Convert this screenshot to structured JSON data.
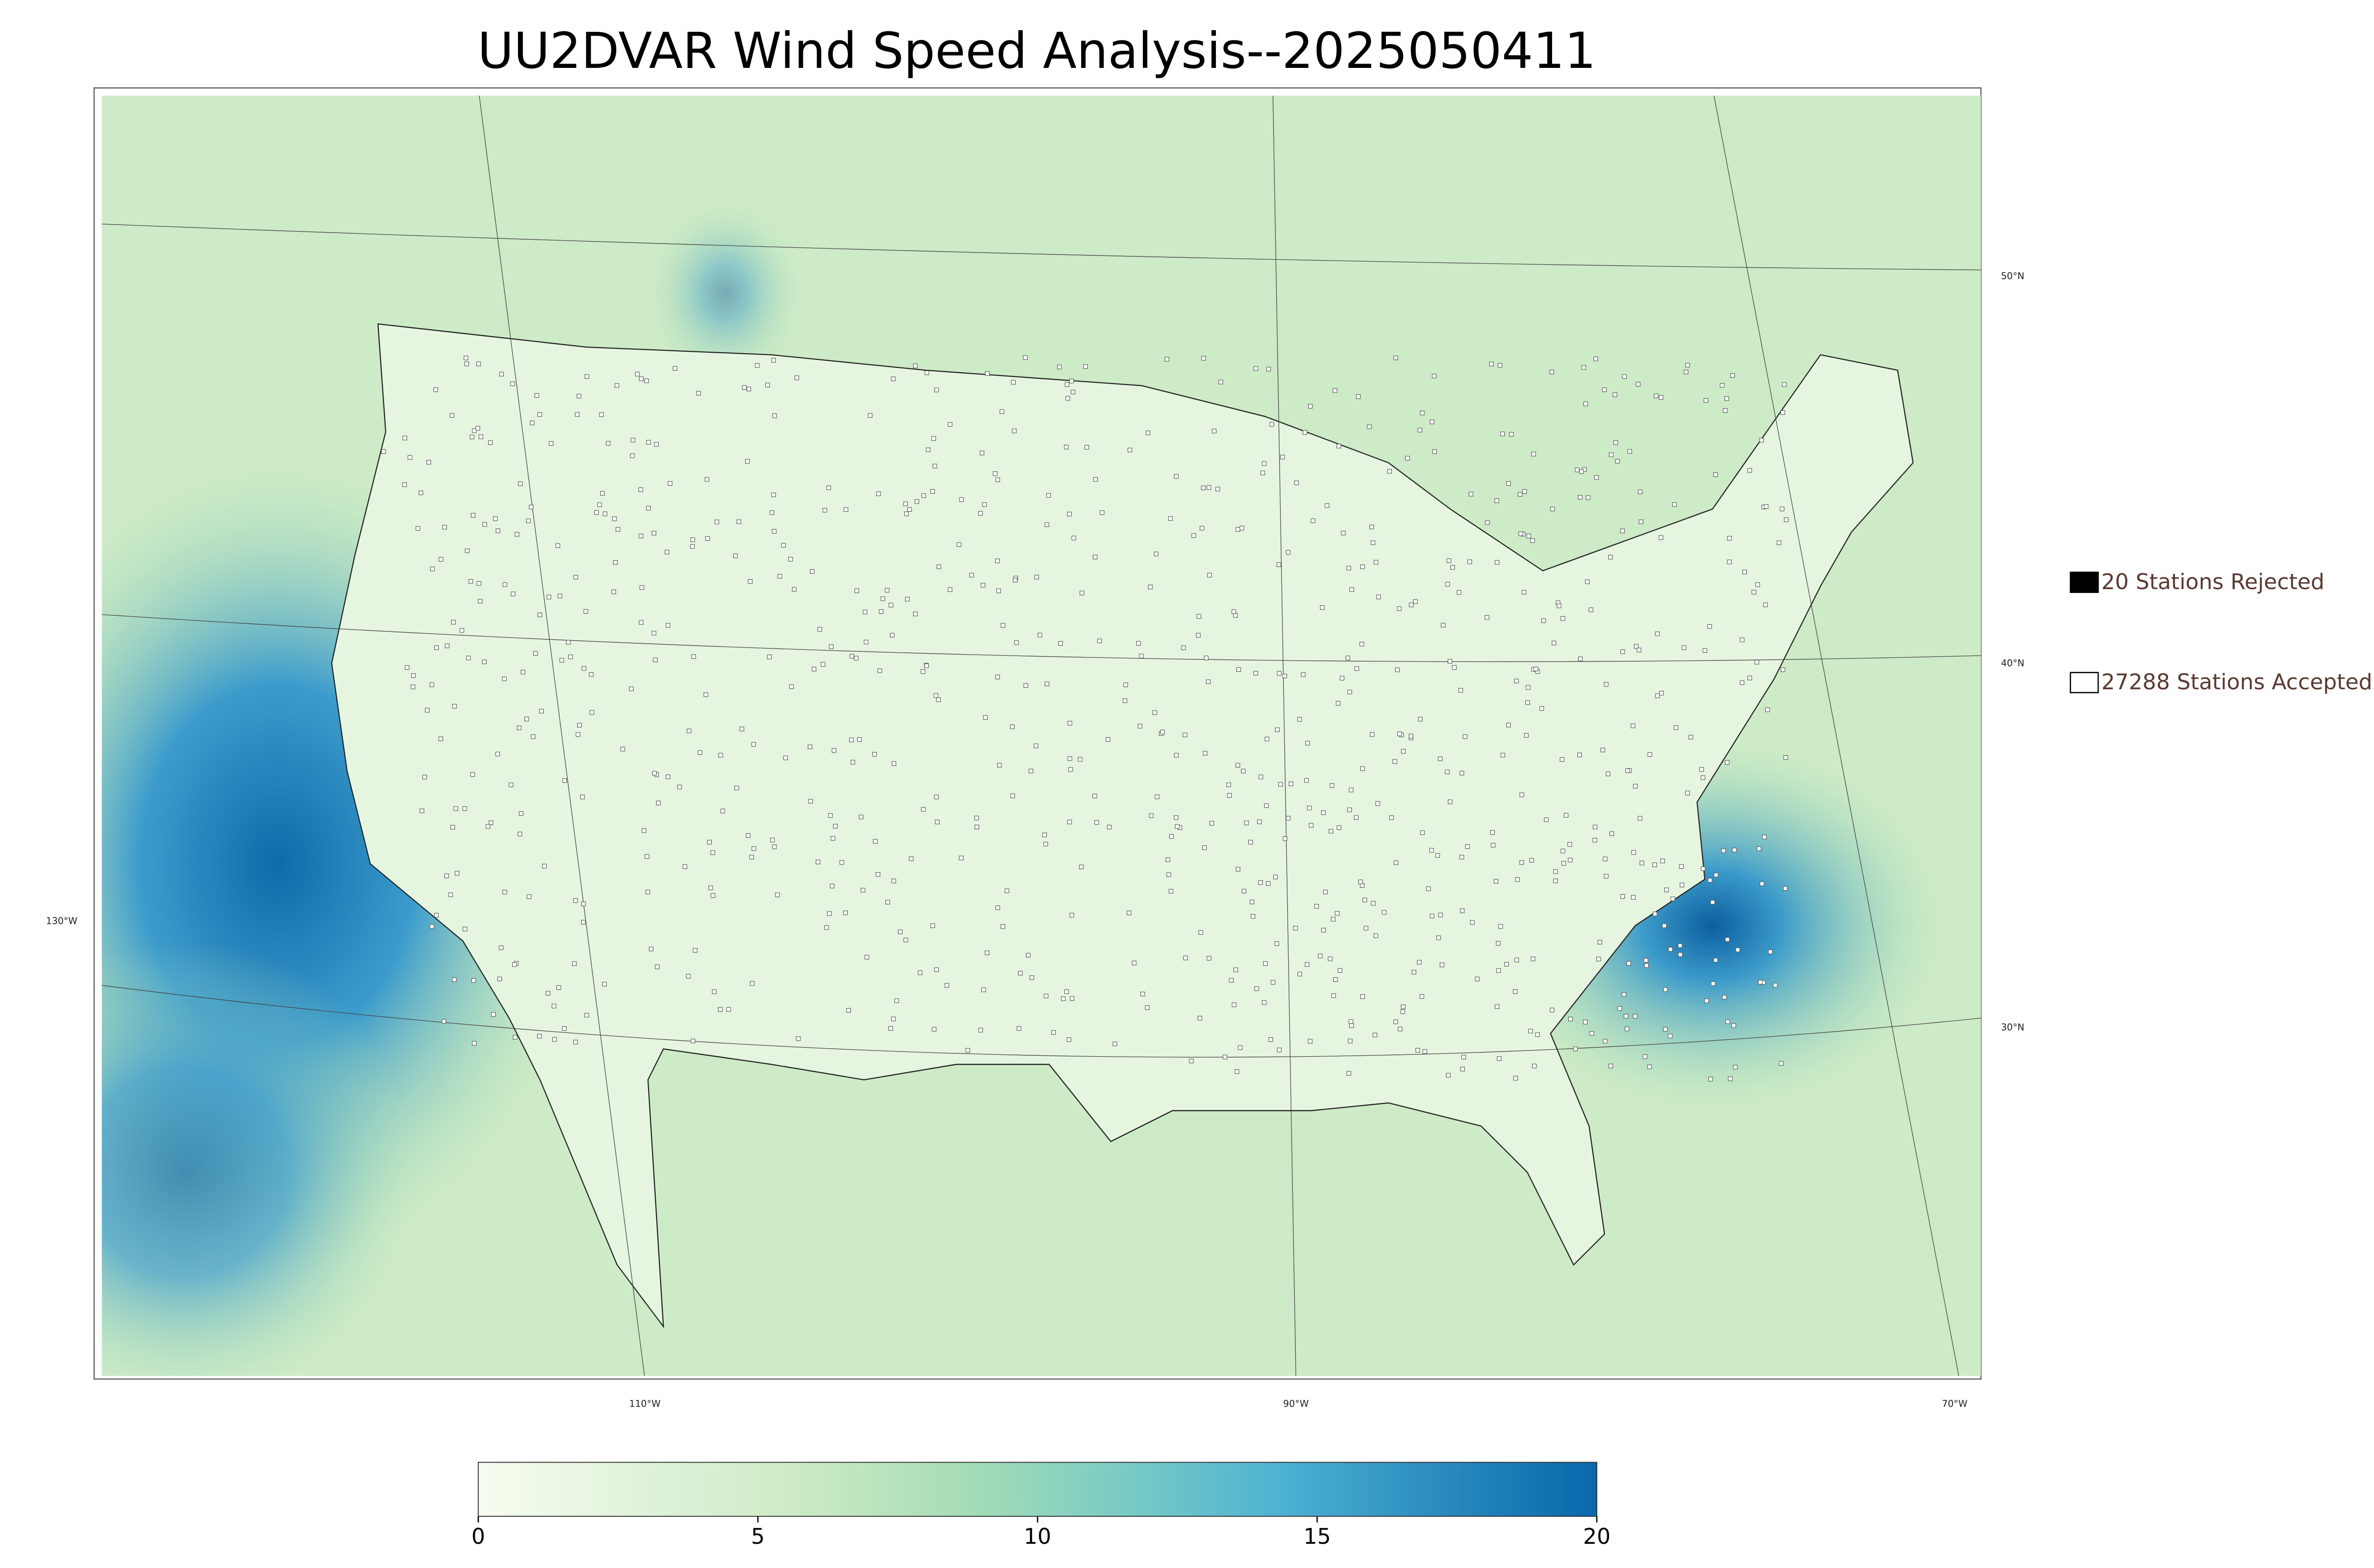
{
  "title": "UU2DVAR Wind Speed Analysis--2025050411",
  "legend": [
    {
      "label": "20 Stations Rejected",
      "fill": "#000000"
    },
    {
      "label": "27288 Stations Accepted",
      "fill": "#ffffff"
    }
  ],
  "colorbar": {
    "min": 0,
    "max": 20,
    "ticks": [
      0,
      5,
      10,
      15,
      20
    ],
    "colors": [
      "#f7fcf0",
      "#e0f3db",
      "#ccebc5",
      "#a8ddb5",
      "#7bccc4",
      "#4eb3d3",
      "#2b8cbe",
      "#0868ac"
    ]
  },
  "graticule": {
    "lat_labels": [
      "50°N",
      "40°N",
      "30°N"
    ],
    "lon_labels": [
      "130°W",
      "110°W",
      "90°W",
      "70°W"
    ]
  }
}
